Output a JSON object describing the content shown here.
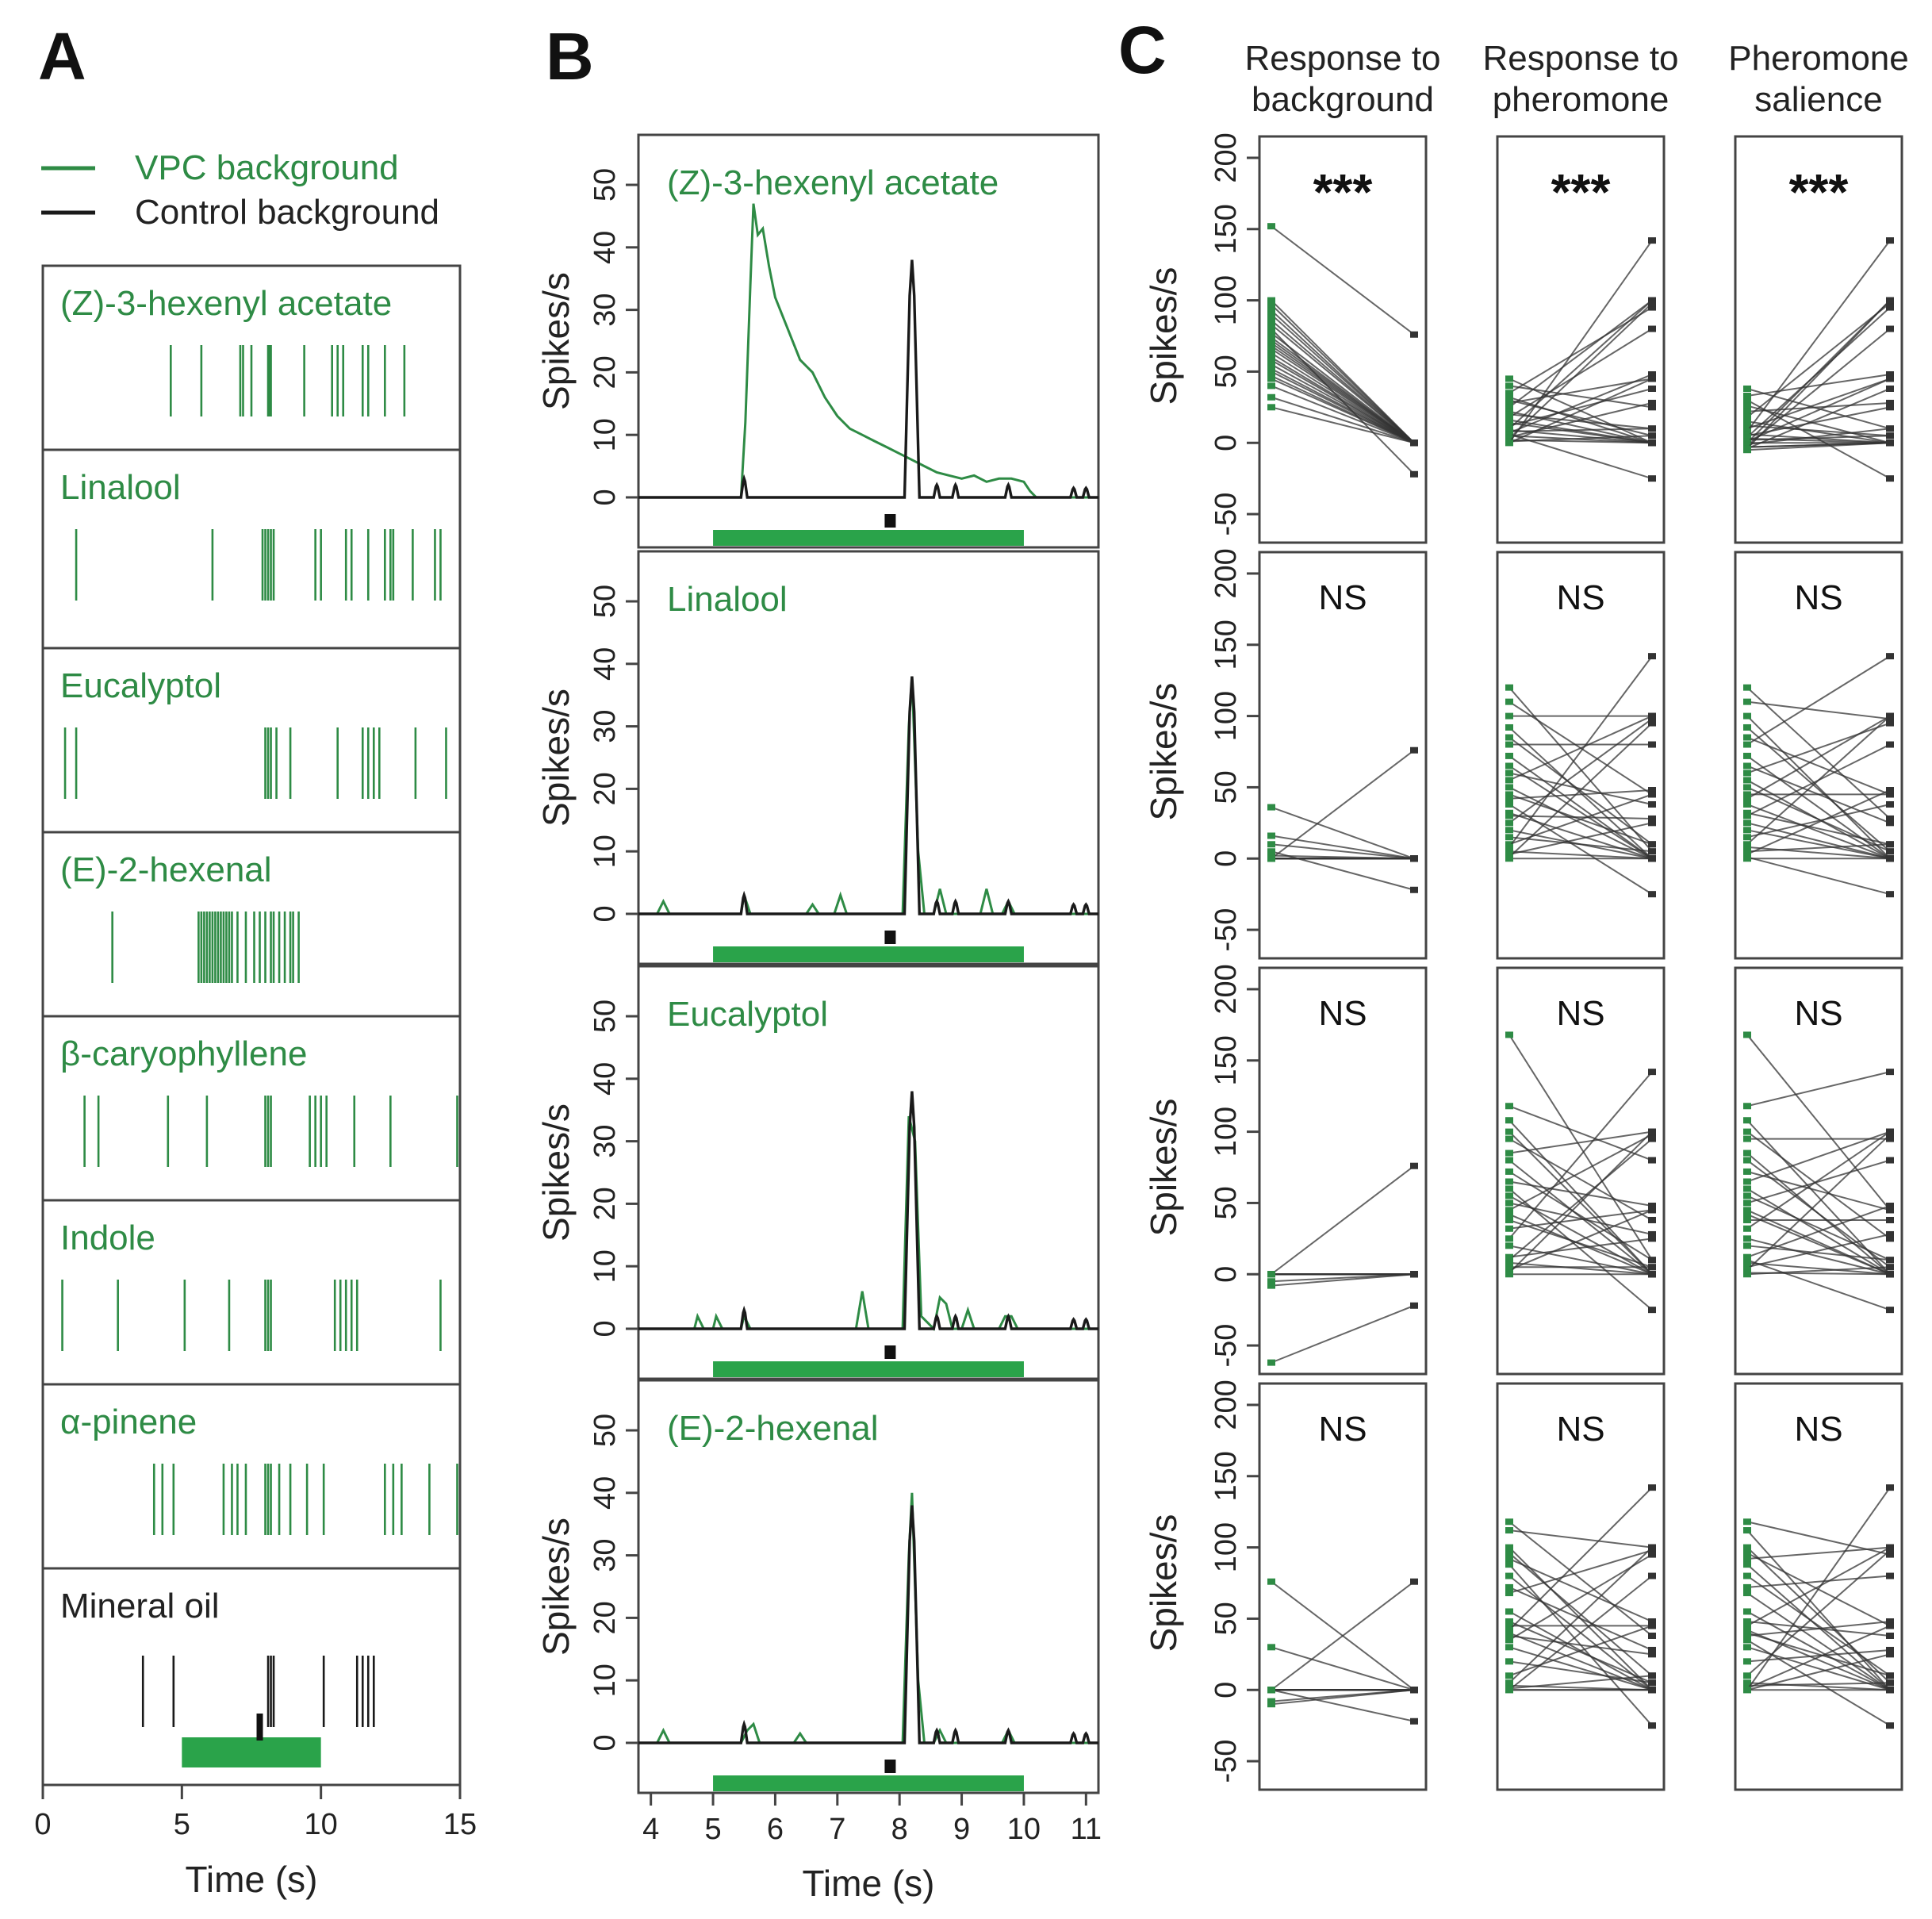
{
  "colors": {
    "vpc": "#2e8b45",
    "control": "#1a1a1a",
    "bar": "#2aa34a"
  },
  "panels": {
    "a": "A",
    "b": "B",
    "c": "C"
  },
  "legend": {
    "vpc": "VPC background",
    "control": "Control background"
  },
  "chart_data": [
    {
      "id": "A",
      "type": "raster",
      "xlabel": "Time (s)",
      "xlim": [
        0,
        15
      ],
      "xticks": [
        0,
        5,
        10,
        15
      ],
      "stimulus": {
        "odor_window": [
          5,
          10
        ],
        "pheromone_time": 7.8
      },
      "rows": [
        {
          "label": "(Z)-3-hexenyl acetate",
          "color": "green",
          "spikes": [
            4.6,
            5.7,
            7.1,
            7.2,
            7.5,
            8.1,
            8.15,
            8.2,
            9.4,
            10.4,
            10.6,
            10.8,
            11.5,
            11.7,
            12.3,
            13.0
          ]
        },
        {
          "label": "Linalool",
          "color": "green",
          "spikes": [
            1.2,
            6.1,
            7.9,
            8.0,
            8.1,
            8.2,
            8.3,
            9.8,
            10.0,
            10.9,
            11.1,
            11.7,
            12.3,
            12.5,
            12.6,
            13.3,
            14.1,
            14.3
          ]
        },
        {
          "label": "Eucalyptol",
          "color": "green",
          "spikes": [
            0.8,
            1.2,
            8.0,
            8.1,
            8.2,
            8.4,
            8.9,
            10.6,
            11.5,
            11.7,
            11.9,
            12.1,
            13.4,
            14.5
          ]
        },
        {
          "label": "(E)-2-hexenal",
          "color": "green",
          "spikes": [
            2.5,
            5.6,
            5.7,
            5.8,
            5.9,
            6.0,
            6.1,
            6.2,
            6.3,
            6.4,
            6.5,
            6.6,
            6.7,
            6.8,
            7.0,
            7.3,
            7.6,
            7.8,
            8.0,
            8.2,
            8.3,
            8.5,
            8.7,
            8.9,
            9.0,
            9.2
          ]
        },
        {
          "label": "β-caryophyllene",
          "color": "green",
          "spikes": [
            1.5,
            2.0,
            4.5,
            5.9,
            8.0,
            8.1,
            8.2,
            9.6,
            9.8,
            10.0,
            10.2,
            11.2,
            12.5,
            14.9
          ]
        },
        {
          "label": "Indole",
          "color": "green",
          "spikes": [
            0.7,
            2.7,
            5.1,
            6.7,
            8.0,
            8.1,
            8.2,
            10.5,
            10.7,
            10.9,
            11.1,
            11.3,
            14.3
          ]
        },
        {
          "label": "α-pinene",
          "color": "green",
          "spikes": [
            4.0,
            4.3,
            4.7,
            6.5,
            6.8,
            7.0,
            7.3,
            8.0,
            8.1,
            8.2,
            8.5,
            8.9,
            9.5,
            10.1,
            12.3,
            12.6,
            12.9,
            13.9,
            14.9
          ]
        },
        {
          "label": "Mineral oil",
          "color": "black",
          "spikes": [
            3.6,
            4.7,
            8.1,
            8.2,
            8.3,
            10.1,
            11.3,
            11.5,
            11.7,
            11.9
          ]
        }
      ]
    },
    {
      "id": "B",
      "type": "line",
      "xlabel": "Time (s)",
      "ylabel": "Spikes/s",
      "xlim": [
        3.8,
        11.2
      ],
      "ylim": [
        -8,
        58
      ],
      "xticks": [
        4,
        5,
        6,
        7,
        8,
        9,
        10,
        11
      ],
      "yticks": [
        0,
        10,
        20,
        30,
        40,
        50
      ],
      "stimulus": {
        "odor_window": [
          5,
          10
        ],
        "pheromone_time": 7.85
      },
      "control_peaks": [
        [
          5.5,
          3
        ],
        [
          8.2,
          38
        ],
        [
          8.6,
          2
        ],
        [
          8.9,
          2
        ],
        [
          9.75,
          2
        ],
        [
          10.8,
          1.5
        ],
        [
          11.0,
          1.5
        ]
      ],
      "rows": [
        {
          "label": "(Z)-3-hexenyl acetate",
          "vpc_series": [
            [
              3.8,
              0
            ],
            [
              5.45,
              0
            ],
            [
              5.52,
              12
            ],
            [
              5.6,
              34
            ],
            [
              5.65,
              47
            ],
            [
              5.72,
              42
            ],
            [
              5.8,
              43
            ],
            [
              5.9,
              37
            ],
            [
              6.0,
              32
            ],
            [
              6.2,
              27
            ],
            [
              6.4,
              22
            ],
            [
              6.6,
              20
            ],
            [
              6.8,
              16
            ],
            [
              7.0,
              13
            ],
            [
              7.2,
              11
            ],
            [
              7.4,
              10
            ],
            [
              7.6,
              9
            ],
            [
              7.8,
              8
            ],
            [
              8.0,
              7
            ],
            [
              8.2,
              6
            ],
            [
              8.4,
              5
            ],
            [
              8.6,
              4
            ],
            [
              8.8,
              3.5
            ],
            [
              9.0,
              3
            ],
            [
              9.2,
              3.5
            ],
            [
              9.4,
              2.5
            ],
            [
              9.6,
              3
            ],
            [
              9.8,
              3
            ],
            [
              10.0,
              2.5
            ],
            [
              10.1,
              1
            ],
            [
              10.2,
              0
            ],
            [
              11.2,
              0
            ]
          ]
        },
        {
          "label": "Linalool",
          "vpc_series": [
            [
              3.8,
              0
            ],
            [
              4.1,
              0
            ],
            [
              4.2,
              2
            ],
            [
              4.3,
              0
            ],
            [
              5.45,
              0
            ],
            [
              5.5,
              3
            ],
            [
              5.6,
              0
            ],
            [
              6.5,
              0
            ],
            [
              6.6,
              1.5
            ],
            [
              6.7,
              0
            ],
            [
              6.95,
              0
            ],
            [
              7.05,
              3
            ],
            [
              7.15,
              0
            ],
            [
              8.05,
              0
            ],
            [
              8.15,
              30
            ],
            [
              8.2,
              38
            ],
            [
              8.3,
              10
            ],
            [
              8.4,
              0
            ],
            [
              8.55,
              0
            ],
            [
              8.65,
              4
            ],
            [
              8.75,
              0
            ],
            [
              9.3,
              0
            ],
            [
              9.4,
              4
            ],
            [
              9.5,
              0
            ],
            [
              9.65,
              0
            ],
            [
              9.75,
              2
            ],
            [
              9.85,
              0
            ],
            [
              11.2,
              0
            ]
          ]
        },
        {
          "label": "Eucalyptol",
          "vpc_series": [
            [
              3.8,
              0
            ],
            [
              4.7,
              0
            ],
            [
              4.75,
              2
            ],
            [
              4.85,
              0
            ],
            [
              5.0,
              0
            ],
            [
              5.05,
              2
            ],
            [
              5.15,
              0
            ],
            [
              5.45,
              0
            ],
            [
              5.5,
              2
            ],
            [
              5.6,
              0
            ],
            [
              7.3,
              0
            ],
            [
              7.4,
              6
            ],
            [
              7.5,
              0
            ],
            [
              8.05,
              0
            ],
            [
              8.15,
              34
            ],
            [
              8.25,
              30
            ],
            [
              8.35,
              2
            ],
            [
              8.55,
              0
            ],
            [
              8.65,
              5
            ],
            [
              8.75,
              4
            ],
            [
              8.85,
              0
            ],
            [
              9.0,
              0
            ],
            [
              9.1,
              3
            ],
            [
              9.2,
              0
            ],
            [
              9.6,
              0
            ],
            [
              9.7,
              2
            ],
            [
              9.8,
              2
            ],
            [
              9.9,
              0
            ],
            [
              11.2,
              0
            ]
          ]
        },
        {
          "label": "(E)-2-hexenal",
          "vpc_series": [
            [
              3.8,
              0
            ],
            [
              4.1,
              0
            ],
            [
              4.2,
              2
            ],
            [
              4.3,
              0
            ],
            [
              5.45,
              0
            ],
            [
              5.55,
              2
            ],
            [
              5.65,
              3
            ],
            [
              5.75,
              0
            ],
            [
              6.3,
              0
            ],
            [
              6.4,
              1.5
            ],
            [
              6.5,
              0
            ],
            [
              8.05,
              0
            ],
            [
              8.15,
              30
            ],
            [
              8.2,
              40
            ],
            [
              8.3,
              10
            ],
            [
              8.4,
              0
            ],
            [
              8.55,
              0
            ],
            [
              8.65,
              2
            ],
            [
              8.75,
              0
            ],
            [
              9.65,
              0
            ],
            [
              9.75,
              2
            ],
            [
              9.85,
              0
            ],
            [
              11.2,
              0
            ]
          ]
        }
      ]
    },
    {
      "id": "C",
      "type": "paired-dot",
      "ylabel": "Spikes/s",
      "ylim": [
        -70,
        215
      ],
      "yticks": [
        -50,
        0,
        50,
        100,
        150,
        200
      ],
      "columns": [
        "Response to background",
        "Response to pheromone",
        "Pheromone salience"
      ],
      "significance": [
        [
          "***",
          "***",
          "***"
        ],
        [
          "NS",
          "NS",
          "NS"
        ],
        [
          "NS",
          "NS",
          "NS"
        ],
        [
          "NS",
          "NS",
          "NS"
        ]
      ],
      "right_values": [
        0,
        0,
        0,
        0,
        0,
        0,
        0,
        0,
        5,
        5,
        10,
        10,
        25,
        28,
        38,
        45,
        45,
        48,
        80,
        95,
        98,
        100,
        100,
        142,
        -25
      ],
      "right_values_bg": [
        76,
        0,
        0,
        0,
        0,
        0,
        0,
        0,
        0,
        0,
        0,
        0,
        0,
        0,
        0,
        0,
        0,
        0,
        0,
        0,
        0,
        0,
        0,
        0,
        -22
      ],
      "left_values": [
        [
          [
            152,
            100,
            97,
            93,
            90,
            86,
            83,
            80,
            77,
            74,
            72,
            70,
            68,
            66,
            63,
            60,
            58,
            55,
            52,
            50,
            47,
            45,
            40,
            32,
            25
          ],
          [
            45,
            40,
            35,
            32,
            30,
            28,
            25,
            22,
            20,
            18,
            16,
            14,
            12,
            10,
            9,
            8,
            7,
            6,
            5,
            4,
            3,
            2,
            1,
            0,
            0
          ],
          [
            38,
            33,
            30,
            26,
            22,
            18,
            15,
            12,
            10,
            8,
            6,
            5,
            4,
            3,
            2,
            1,
            0,
            0,
            -1,
            -2,
            -3,
            -3,
            -4,
            -4,
            -5
          ]
        ],
        [
          [
            36,
            16,
            10,
            5,
            2,
            0,
            0,
            0,
            0,
            0,
            0,
            0,
            0,
            0,
            0,
            0,
            0,
            0,
            0,
            0,
            0,
            0,
            0,
            0,
            0
          ],
          [
            120,
            110,
            100,
            92,
            85,
            80,
            72,
            65,
            60,
            55,
            50,
            45,
            42,
            38,
            32,
            30,
            25,
            20,
            15,
            10,
            8,
            5,
            3,
            1,
            0
          ],
          [
            120,
            110,
            100,
            92,
            85,
            80,
            72,
            65,
            60,
            55,
            50,
            45,
            42,
            38,
            32,
            30,
            25,
            20,
            15,
            10,
            8,
            5,
            3,
            1,
            0
          ]
        ],
        [
          [
            0,
            0,
            0,
            0,
            0,
            0,
            0,
            0,
            0,
            0,
            0,
            0,
            0,
            0,
            0,
            0,
            0,
            0,
            0,
            0,
            0,
            0,
            -5,
            -8,
            -62
          ],
          [
            168,
            118,
            108,
            100,
            95,
            85,
            80,
            72,
            65,
            60,
            55,
            50,
            45,
            42,
            38,
            32,
            25,
            20,
            12,
            10,
            8,
            5,
            3,
            1,
            0
          ],
          [
            168,
            118,
            108,
            100,
            95,
            85,
            80,
            72,
            65,
            60,
            55,
            50,
            45,
            42,
            38,
            32,
            25,
            20,
            12,
            10,
            8,
            5,
            3,
            1,
            0
          ]
        ],
        [
          [
            76,
            30,
            0,
            0,
            0,
            0,
            0,
            0,
            0,
            0,
            0,
            0,
            0,
            0,
            0,
            0,
            0,
            0,
            0,
            0,
            0,
            0,
            0,
            -8,
            -10
          ],
          [
            118,
            112,
            100,
            96,
            92,
            88,
            80,
            72,
            68,
            55,
            48,
            45,
            42,
            40,
            38,
            35,
            30,
            20,
            10,
            5,
            3,
            1,
            0,
            0,
            0
          ],
          [
            118,
            112,
            100,
            96,
            92,
            88,
            80,
            72,
            68,
            55,
            48,
            45,
            42,
            40,
            38,
            35,
            30,
            20,
            10,
            5,
            3,
            1,
            0,
            0,
            0
          ]
        ]
      ]
    }
  ]
}
